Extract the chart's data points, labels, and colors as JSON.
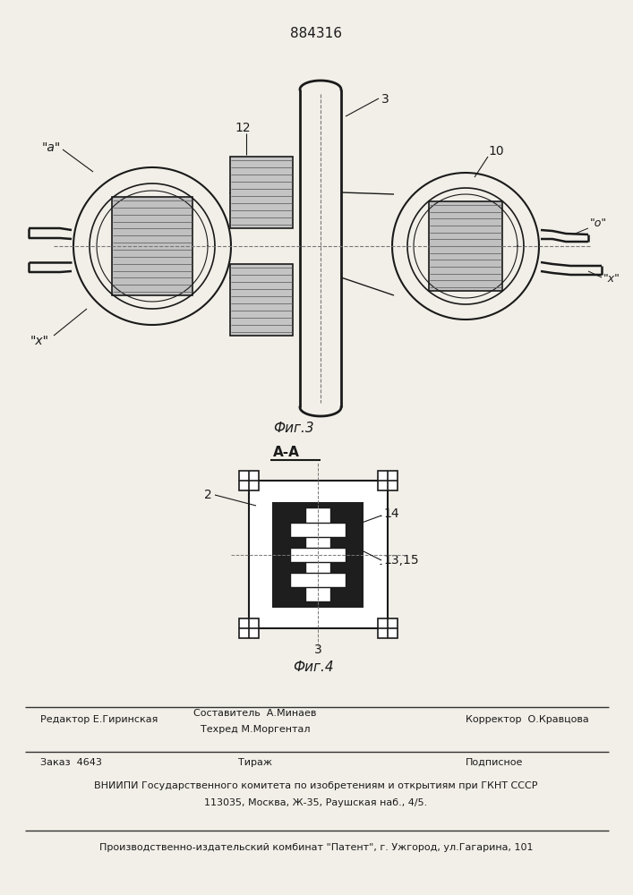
{
  "title": "884316",
  "fig3_label": "Фиг.3",
  "fig4_label": "Фиг.4",
  "aa_label": "A-A",
  "bg_color": "#f2efe8",
  "line_color": "#1a1a1a",
  "footer_line1_left": "Редактор Е.Гиринская",
  "footer_line1_mid_top": "Составитель  А.Минаев",
  "footer_line1_mid_bot": "Техред М.Моргентал",
  "footer_line1_right": "Корректор  О.Кравцова",
  "footer_line2_left": "Заказ  4643",
  "footer_line2_mid": "Тираж",
  "footer_line2_right": "Подписное",
  "footer_line3": "ВНИИПИ Государственного комитета по изобретениям и открытиям при ГКНТ СССР",
  "footer_line4": "113035, Москва, Ж-35, Раушская наб., 4/5.",
  "footer_line5": "Производственно-издательский комбинат \"Патент\", г. Ужгород, ул.Гагарина, 101"
}
